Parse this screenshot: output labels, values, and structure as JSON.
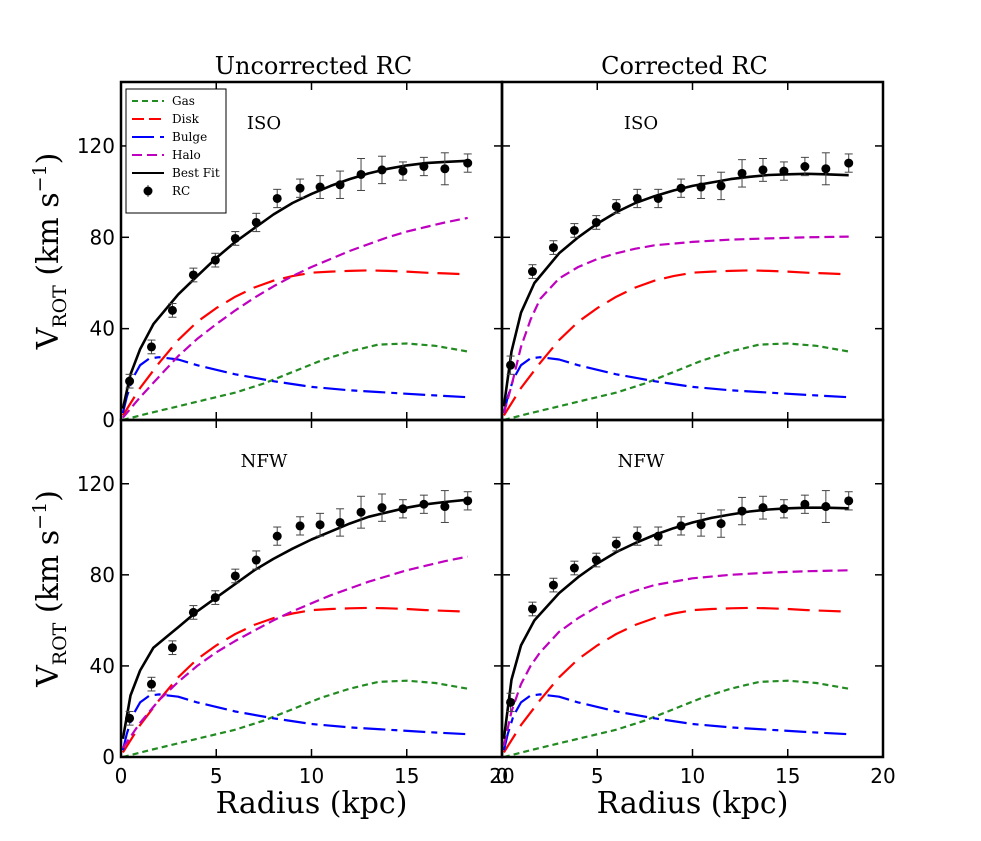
{
  "chart_data": {
    "type": "line",
    "column_titles": [
      "Uncorrected RC",
      "Corrected RC"
    ],
    "row_labels": [
      "ISO",
      "NFW"
    ],
    "xlabel": "Radius (kpc)",
    "ylabel": "V_ROT (km s^-1)",
    "ylabel_parts": {
      "v": "V",
      "sub": "ROT",
      "unit": " (km s",
      "exp": "−1",
      "close": ")"
    },
    "xlim": [
      0,
      20
    ],
    "ylim": [
      0,
      148
    ],
    "xticks": [
      0,
      5,
      10,
      15,
      20
    ],
    "yticks": [
      0,
      40,
      80,
      120
    ],
    "legend": {
      "location": "top-left of top-left panel",
      "entries": [
        {
          "key": "gas",
          "label": "Gas"
        },
        {
          "key": "disk",
          "label": "Disk"
        },
        {
          "key": "bulge",
          "label": "Bulge"
        },
        {
          "key": "halo",
          "label": "Halo"
        },
        {
          "key": "fit",
          "label": "Best Fit"
        },
        {
          "key": "rc",
          "label": "RC"
        }
      ]
    },
    "styles": {
      "gas": {
        "color": "#228B22",
        "dash": "short"
      },
      "disk": {
        "color": "#ff0000",
        "dash": "long"
      },
      "bulge": {
        "color": "#0000ff",
        "dash": "mixed"
      },
      "halo": {
        "color": "#bf00bf",
        "dash": "medium"
      },
      "fit": {
        "color": "#000000",
        "dash": "solid"
      },
      "rc": {
        "color": "#000000",
        "marker": "circle"
      }
    },
    "components": {
      "gas": {
        "x": [
          0.1,
          1.5,
          3,
          4.5,
          6,
          7.5,
          9,
          10.5,
          12,
          13.5,
          15,
          16.5,
          18.2
        ],
        "y": [
          0,
          3,
          6,
          9,
          12,
          16,
          21,
          26,
          30,
          33,
          33.5,
          32.5,
          30
        ]
      },
      "disk": {
        "x": [
          0.1,
          1,
          2,
          3,
          4,
          5,
          6,
          7,
          8,
          9,
          10,
          11,
          12,
          13,
          14,
          15,
          16,
          17,
          18.2
        ],
        "y": [
          2,
          14,
          25,
          35,
          43,
          49,
          54,
          58,
          61,
          63,
          64.5,
          65,
          65.3,
          65.5,
          65.3,
          65,
          64.5,
          64.2,
          63.8
        ]
      },
      "bulge": {
        "x": [
          0.1,
          0.3,
          0.6,
          1,
          1.5,
          2,
          3,
          4,
          5,
          6,
          8,
          10,
          12,
          14,
          16,
          18.2
        ],
        "y": [
          3,
          10,
          18,
          24,
          27,
          27.5,
          26.5,
          24,
          22,
          20,
          17,
          14.5,
          13,
          12,
          11,
          10
        ]
      }
    },
    "rc_points": {
      "uncorrected": {
        "x": [
          0.45,
          1.6,
          2.7,
          3.8,
          4.95,
          6.0,
          7.1,
          8.2,
          9.4,
          10.45,
          11.5,
          12.6,
          13.7,
          14.8,
          15.9,
          17.0,
          18.2
        ],
        "y": [
          17,
          32,
          48,
          63.5,
          70,
          79.5,
          86.5,
          97,
          101.5,
          102,
          103,
          107.5,
          109.5,
          109,
          111,
          110,
          112.5
        ],
        "err": [
          3,
          3,
          3,
          3,
          3,
          3,
          4,
          4,
          4,
          5,
          6,
          7,
          6,
          4,
          4,
          7,
          4
        ]
      },
      "corrected": {
        "x": [
          0.45,
          1.6,
          2.7,
          3.8,
          4.95,
          6.0,
          7.1,
          8.2,
          9.4,
          10.45,
          11.5,
          12.6,
          13.7,
          14.8,
          15.9,
          17.0,
          18.2
        ],
        "y": [
          24,
          65,
          75.5,
          83,
          86.5,
          93.5,
          97,
          97,
          101.5,
          102,
          102.5,
          108,
          109.5,
          109,
          111,
          110,
          112.5
        ],
        "err": [
          4,
          3,
          3,
          3,
          3,
          3,
          4,
          4,
          4,
          5,
          6,
          6,
          5,
          4,
          4,
          7,
          4
        ]
      }
    },
    "panels": [
      {
        "id": "uncorrected-iso",
        "label": "ISO",
        "data": "uncorrected",
        "halo": {
          "x": [
            0.1,
            1,
            2,
            3,
            4,
            5,
            6,
            7,
            8,
            9,
            10,
            11,
            12,
            13,
            14,
            15,
            16,
            17,
            18.2
          ],
          "y": [
            1,
            10,
            19,
            28,
            35.5,
            42,
            48,
            53.5,
            58.5,
            63,
            67,
            70.5,
            74,
            77,
            80,
            82.5,
            84.5,
            86.5,
            88.5
          ]
        },
        "fit": {
          "x": [
            0.1,
            0.5,
            1,
            1.7,
            3,
            4,
            5,
            6,
            7,
            8,
            9,
            10,
            11,
            12,
            13,
            14,
            15,
            16,
            17,
            18.2
          ],
          "y": [
            5,
            20,
            31,
            42,
            55,
            63,
            71,
            78,
            84,
            90,
            95,
            99,
            102.5,
            105.5,
            108,
            110,
            111.5,
            112.5,
            113,
            113.5
          ]
        }
      },
      {
        "id": "corrected-iso",
        "label": "ISO",
        "data": "corrected",
        "halo": {
          "x": [
            0.1,
            0.5,
            1,
            1.5,
            2,
            3,
            4,
            5,
            6,
            7,
            8,
            10,
            12,
            14,
            16,
            18.2
          ],
          "y": [
            3,
            15,
            32,
            44,
            53,
            62,
            67,
            70.5,
            73,
            75,
            76.5,
            78,
            79,
            79.5,
            80,
            80.3
          ]
        },
        "fit": {
          "x": [
            0.1,
            0.5,
            1,
            1.7,
            3,
            4,
            5,
            6,
            7,
            8,
            9,
            10,
            11,
            12,
            13,
            14,
            15,
            16,
            17,
            18.2
          ],
          "y": [
            6,
            30,
            47,
            60,
            73,
            80,
            86,
            91,
            95,
            98,
            100.5,
            102.5,
            104,
            105.5,
            106.5,
            107.3,
            107.6,
            107.8,
            107.6,
            107.2
          ]
        }
      },
      {
        "id": "uncorrected-nfw",
        "label": "NFW",
        "data": "uncorrected",
        "halo": {
          "x": [
            0.1,
            1,
            2,
            3,
            4,
            5,
            6,
            7,
            8,
            9,
            10,
            11,
            12,
            13,
            14,
            15,
            16,
            17,
            18.2
          ],
          "y": [
            4,
            15,
            25,
            33,
            40,
            46,
            51,
            55.5,
            60,
            64,
            67.5,
            71,
            74,
            77,
            79.5,
            82,
            84,
            86,
            88
          ]
        },
        "fit": {
          "x": [
            0.1,
            0.5,
            1,
            1.7,
            3,
            4,
            5,
            6,
            7,
            8,
            9,
            10,
            11,
            12,
            13,
            14,
            15,
            16,
            17,
            18.2
          ],
          "y": [
            8,
            27,
            38,
            48,
            57,
            64,
            70,
            76,
            82,
            87,
            91.5,
            95.5,
            99,
            102.5,
            105.5,
            107.5,
            109.5,
            111,
            112,
            113
          ]
        }
      },
      {
        "id": "corrected-nfw",
        "label": "NFW",
        "data": "corrected",
        "halo": {
          "x": [
            0.1,
            0.5,
            1,
            1.5,
            2,
            3,
            4,
            5,
            6,
            7,
            8,
            10,
            12,
            14,
            16,
            18.2
          ],
          "y": [
            5,
            20,
            32,
            40,
            46,
            55,
            61,
            66,
            70,
            73,
            75.5,
            78.5,
            80,
            81,
            81.6,
            82
          ]
        },
        "fit": {
          "x": [
            0.1,
            0.5,
            1,
            1.7,
            3,
            4,
            5,
            6,
            7,
            8,
            9,
            10,
            11,
            12,
            13,
            14,
            15,
            16,
            17,
            18.2
          ],
          "y": [
            8,
            34,
            49,
            60,
            72,
            79,
            85,
            90,
            94,
            97.5,
            100.5,
            103,
            105,
            106.5,
            107.8,
            108.7,
            109.2,
            109.5,
            109.5,
            109.2
          ]
        }
      }
    ]
  }
}
